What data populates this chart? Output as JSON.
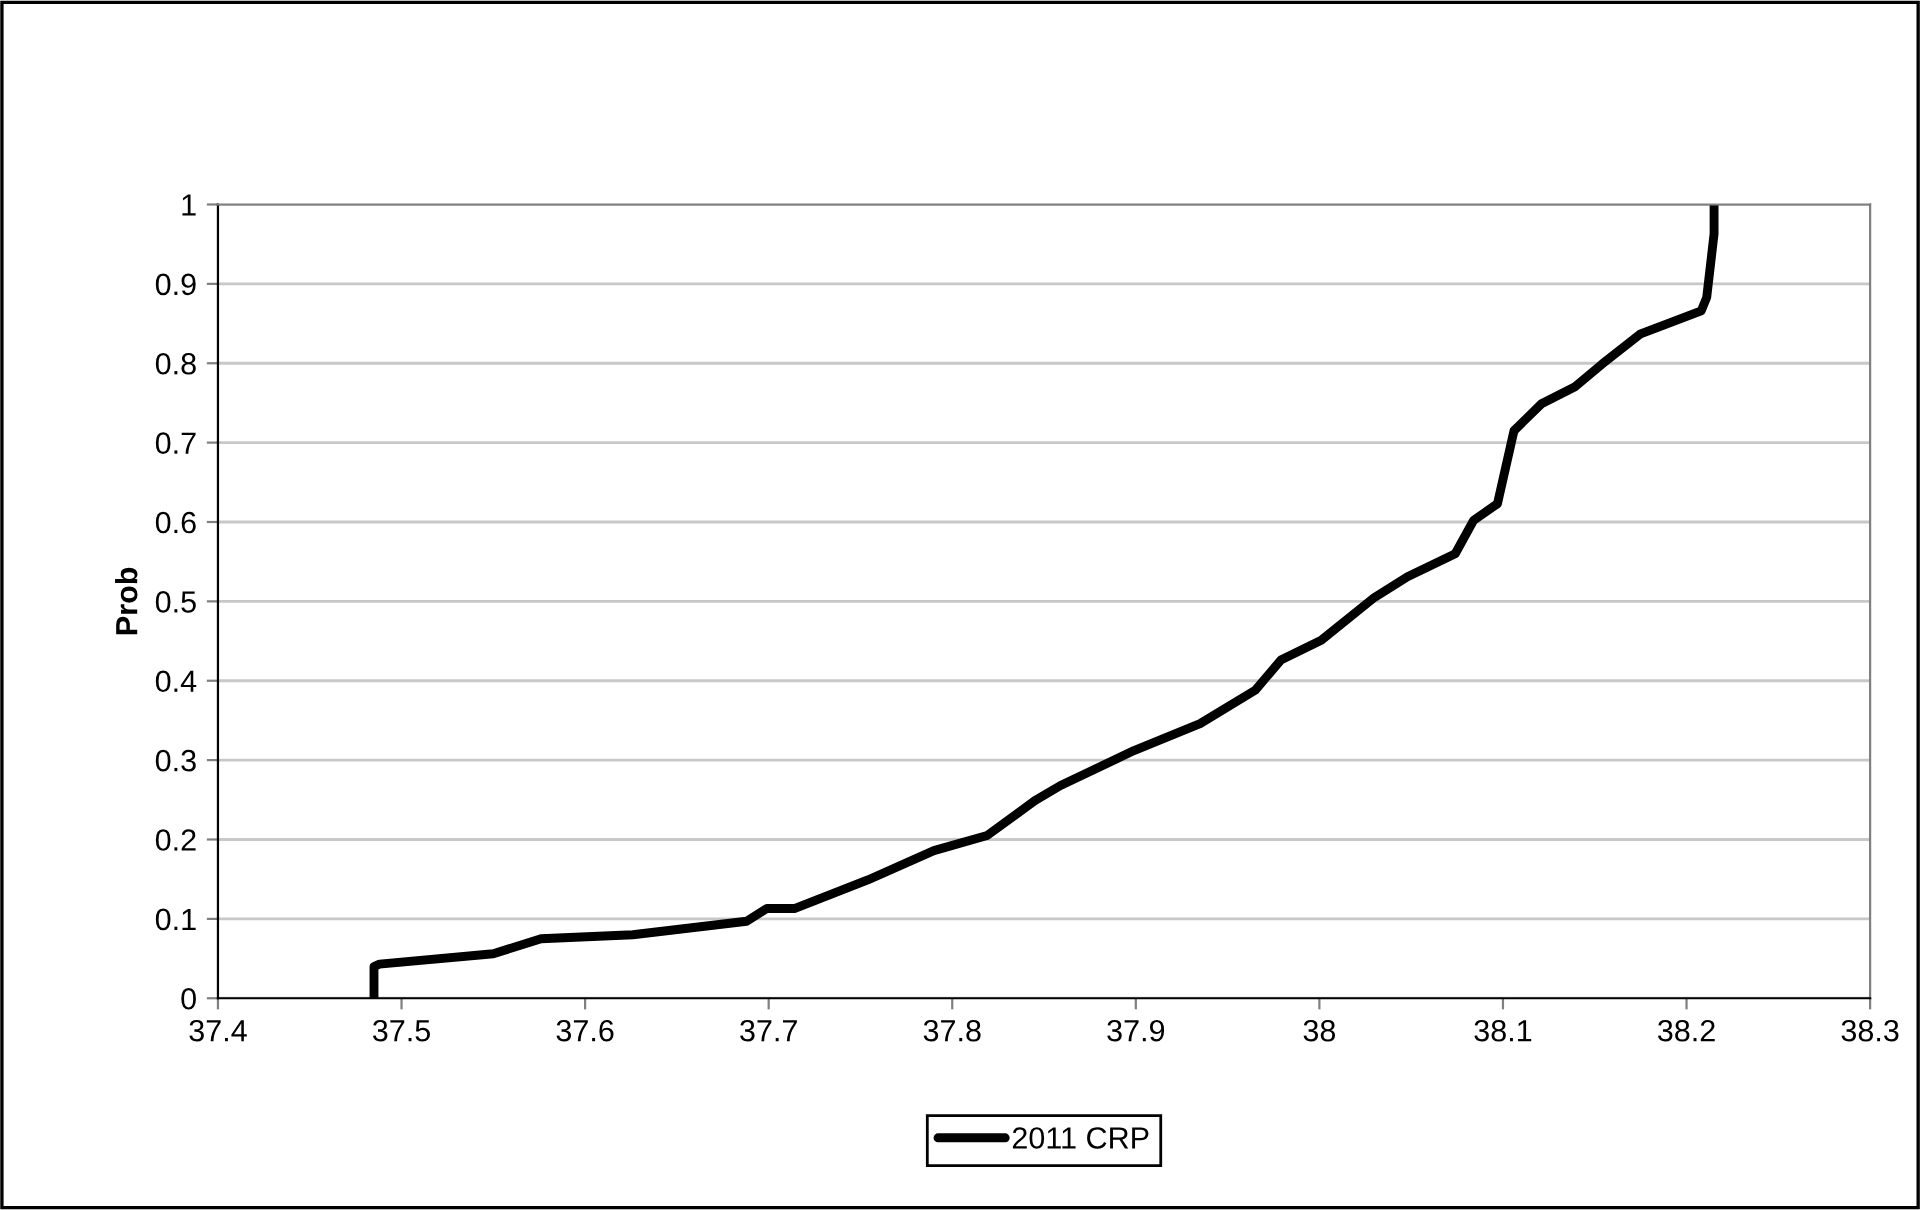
{
  "chart_data": {
    "type": "line",
    "ylabel": "Prob",
    "x": [
      37.485,
      37.485,
      37.488,
      37.55,
      37.576,
      37.626,
      37.688,
      37.699,
      37.714,
      37.754,
      37.79,
      37.819,
      37.845,
      37.859,
      37.899,
      37.935,
      37.965,
      37.979,
      38.001,
      38.03,
      38.048,
      38.074,
      38.084,
      38.097,
      38.106,
      38.121,
      38.139,
      38.154,
      38.175,
      38.208,
      38.211,
      38.215,
      38.215
    ],
    "series": [
      {
        "name": "2011 CRP",
        "color": "#000000",
        "values": [
          0,
          0.04,
          0.043,
          0.056,
          0.075,
          0.08,
          0.097,
          0.113,
          0.113,
          0.149,
          0.186,
          0.205,
          0.249,
          0.268,
          0.312,
          0.346,
          0.388,
          0.426,
          0.451,
          0.505,
          0.531,
          0.56,
          0.602,
          0.623,
          0.715,
          0.749,
          0.77,
          0.799,
          0.837,
          0.866,
          0.883,
          0.963,
          1.0
        ]
      }
    ],
    "xlim": [
      37.4,
      38.3
    ],
    "xticks": [
      37.4,
      37.5,
      37.6,
      37.7,
      37.8,
      37.9,
      38,
      38.1,
      38.2,
      38.3
    ],
    "ylim": [
      0,
      1
    ],
    "yticks": [
      0,
      0.1,
      0.2,
      0.3,
      0.4,
      0.5,
      0.6,
      0.7,
      0.8,
      0.9,
      1
    ],
    "grid": "y",
    "legend": "bottom",
    "marker": "none",
    "line_style": "solid"
  }
}
